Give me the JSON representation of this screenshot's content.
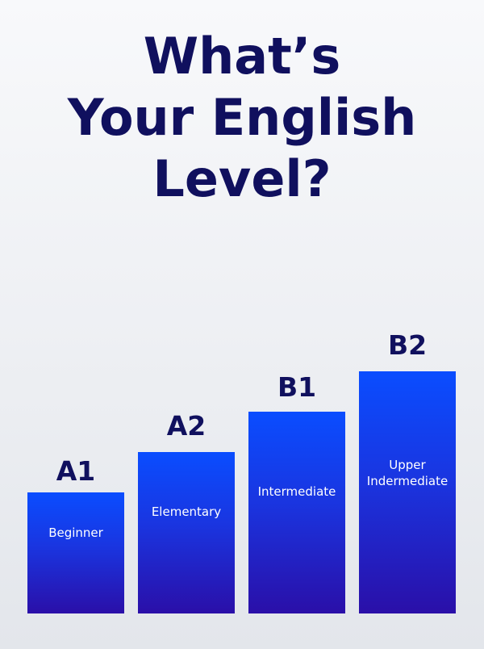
{
  "title": {
    "line1": "What’s",
    "line2": "Your English",
    "line3": "Level?"
  },
  "colors": {
    "title": "#10105e",
    "bar_top": "#0a4dff",
    "bar_bottom": "#2a0fa8"
  },
  "levels": [
    {
      "code": "A1",
      "label": "Beginner",
      "label2": ""
    },
    {
      "code": "A2",
      "label": "Elementary",
      "label2": ""
    },
    {
      "code": "B1",
      "label": "Intermediate",
      "label2": ""
    },
    {
      "code": "B2",
      "label": "Upper",
      "label2": "Indermediate"
    }
  ]
}
